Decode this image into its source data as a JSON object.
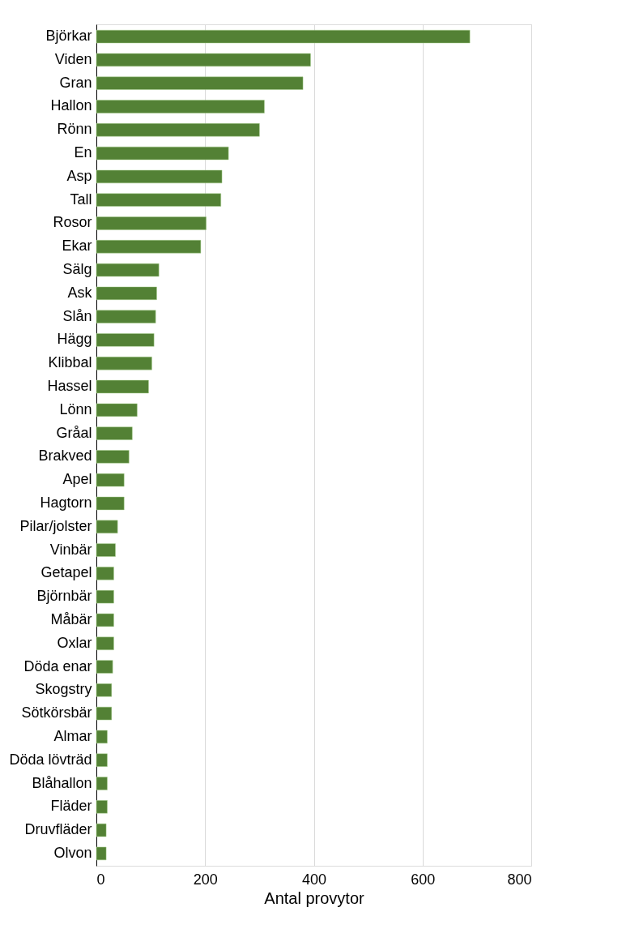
{
  "chart_data": {
    "type": "bar",
    "orientation": "horizontal",
    "xlabel": "Antal provytor",
    "categories": [
      "Björkar",
      "Viden",
      "Gran",
      "Hallon",
      "Rönn",
      "En",
      "Asp",
      "Tall",
      "Rosor",
      "Ekar",
      "Sälg",
      "Ask",
      "Slån",
      "Hägg",
      "Klibbal",
      "Hassel",
      "Lönn",
      "Gråal",
      "Brakved",
      "Apel",
      "Hagtorn",
      "Pilar/jolster",
      "Vinbär",
      "Getapel",
      "Björnbär",
      "Måbär",
      "Oxlar",
      "Döda enar",
      "Skogstry",
      "Sötkörsbär",
      "Almar",
      "Döda lövträd",
      "Blåhallon",
      "Fläder",
      "Druvfläder",
      "Olvon"
    ],
    "values": [
      687,
      394,
      380,
      309,
      300,
      243,
      231,
      229,
      202,
      192,
      115,
      111,
      109,
      106,
      102,
      96,
      75,
      66,
      60,
      51,
      51,
      39,
      35,
      32,
      32,
      32,
      32,
      30,
      28,
      28,
      20,
      20,
      20,
      20,
      18,
      18
    ],
    "color": "#538135",
    "xlim": [
      0,
      800
    ],
    "xticks": [
      0,
      200,
      400,
      600,
      800
    ],
    "grid": "x"
  }
}
